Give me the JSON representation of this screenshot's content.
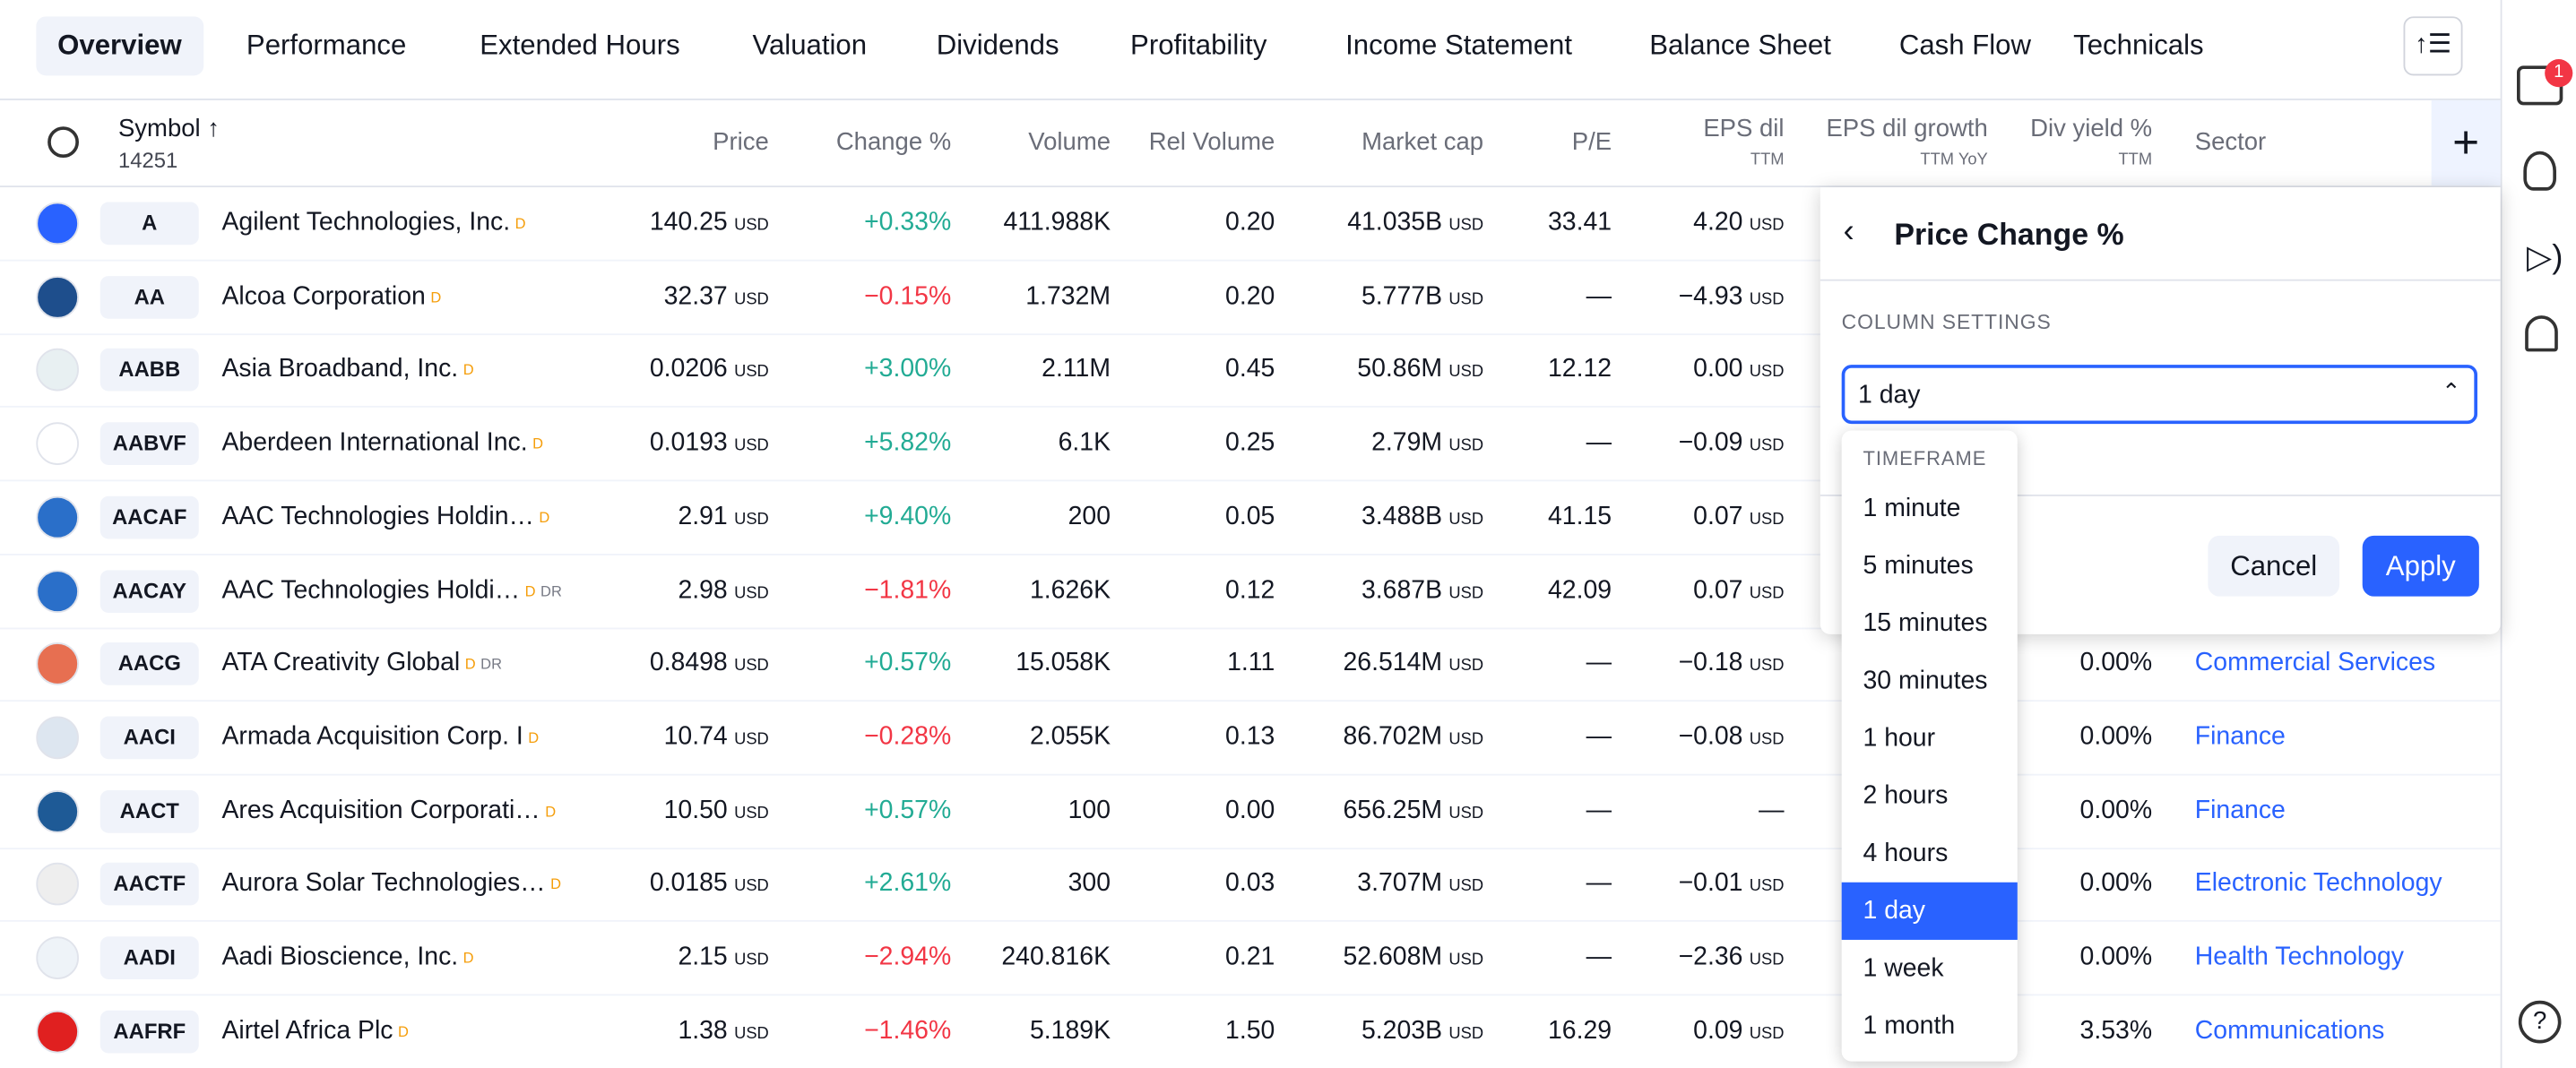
{
  "tabs": [
    "Overview",
    "Performance",
    "Extended Hours",
    "Valuation",
    "Dividends",
    "Profitability",
    "Income Statement",
    "Balance Sheet",
    "Cash Flow",
    "Technicals"
  ],
  "sidebar": {
    "badge": "1"
  },
  "table": {
    "currency": "USD",
    "header": {
      "symbol": "Symbol",
      "count": "14251",
      "price": "Price",
      "change": "Change %",
      "volume": "Volume",
      "rel_volume": "Rel Volume",
      "market_cap": "Market cap",
      "pe": "P/E",
      "eps": "EPS dil",
      "eps_sub": "TTM",
      "eps_growth": "EPS dil growth",
      "eps_growth_sub": "TTM YoY",
      "div_yield": "Div yield %",
      "div_yield_sub": "TTM",
      "sector": "Sector"
    },
    "rows": [
      {
        "symbol": "A",
        "name": "Agilent Technologies, Inc.",
        "badges": [
          "D"
        ],
        "price": "140.25",
        "change": "+0.33%",
        "volume": "411.988K",
        "rel_volume": "0.20",
        "market_cap": "41.035B",
        "pe": "33.41",
        "eps": "4.20"
      },
      {
        "symbol": "AA",
        "name": "Alcoa Corporation",
        "badges": [
          "D"
        ],
        "price": "32.37",
        "change": "−0.15%",
        "volume": "1.732M",
        "rel_volume": "0.20",
        "market_cap": "5.777B",
        "pe": "—",
        "eps": "−4.93"
      },
      {
        "symbol": "AABB",
        "name": "Asia Broadband, Inc.",
        "badges": [
          "D"
        ],
        "price": "0.0206",
        "change": "+3.00%",
        "volume": "2.11M",
        "rel_volume": "0.45",
        "market_cap": "50.86M",
        "pe": "12.12",
        "eps": "0.00"
      },
      {
        "symbol": "AABVF",
        "name": "Aberdeen International Inc.",
        "badges": [
          "D"
        ],
        "price": "0.0193",
        "change": "+5.82%",
        "volume": "6.1K",
        "rel_volume": "0.25",
        "market_cap": "2.79M",
        "pe": "—",
        "eps": "−0.09"
      },
      {
        "symbol": "AACAF",
        "name": "AAC Technologies Holdin…",
        "badges": [
          "D"
        ],
        "price": "2.91",
        "change": "+9.40%",
        "volume": "200",
        "rel_volume": "0.05",
        "market_cap": "3.488B",
        "pe": "41.15",
        "eps": "0.07"
      },
      {
        "symbol": "AACAY",
        "name": "AAC Technologies Holdi…",
        "badges": [
          "D",
          "DR"
        ],
        "price": "2.98",
        "change": "−1.81%",
        "volume": "1.626K",
        "rel_volume": "0.12",
        "market_cap": "3.687B",
        "pe": "42.09",
        "eps": "0.07"
      },
      {
        "symbol": "AACG",
        "name": "ATA Creativity Global",
        "badges": [
          "D",
          "DR"
        ],
        "price": "0.8498",
        "change": "+0.57%",
        "volume": "15.058K",
        "rel_volume": "1.11",
        "market_cap": "26.514M",
        "pe": "—",
        "eps": "−0.18",
        "div_yield": "0.00%",
        "sector": "Commercial Services"
      },
      {
        "symbol": "AACI",
        "name": "Armada Acquisition Corp. I",
        "badges": [
          "D"
        ],
        "price": "10.74",
        "change": "−0.28%",
        "volume": "2.055K",
        "rel_volume": "0.13",
        "market_cap": "86.702M",
        "pe": "—",
        "eps": "−0.08",
        "div_yield": "0.00%",
        "sector": "Finance"
      },
      {
        "symbol": "AACT",
        "name": "Ares Acquisition Corporati…",
        "badges": [
          "D"
        ],
        "price": "10.50",
        "change": "+0.57%",
        "volume": "100",
        "rel_volume": "0.00",
        "market_cap": "656.25M",
        "pe": "—",
        "eps": "—",
        "div_yield": "0.00%",
        "sector": "Finance"
      },
      {
        "symbol": "AACTF",
        "name": "Aurora Solar Technologies…",
        "badges": [
          "D"
        ],
        "price": "0.0185",
        "change": "+2.61%",
        "volume": "300",
        "rel_volume": "0.03",
        "market_cap": "3.707M",
        "pe": "—",
        "eps": "−0.01",
        "div_yield": "0.00%",
        "sector": "Electronic Technology"
      },
      {
        "symbol": "AADI",
        "name": "Aadi Bioscience, Inc.",
        "badges": [
          "D"
        ],
        "price": "2.15",
        "change": "−2.94%",
        "volume": "240.816K",
        "rel_volume": "0.21",
        "market_cap": "52.608M",
        "pe": "—",
        "eps": "−2.36",
        "div_yield": "0.00%",
        "sector": "Health Technology"
      },
      {
        "symbol": "AAFRF",
        "name": "Airtel Africa Plc",
        "badges": [
          "D"
        ],
        "price": "1.38",
        "change": "−1.46%",
        "volume": "5.189K",
        "rel_volume": "1.50",
        "market_cap": "5.203B",
        "pe": "16.29",
        "eps": "0.09",
        "div_yield": "3.53%",
        "sector": "Communications"
      }
    ]
  },
  "popup": {
    "title": "Price Change %",
    "section": "COLUMN SETTINGS",
    "selected": "1 day",
    "dropdown_header": "TIMEFRAME",
    "options": [
      "1 minute",
      "5 minutes",
      "15 minutes",
      "30 minutes",
      "1 hour",
      "2 hours",
      "4 hours",
      "1 day",
      "1 week",
      "1 month"
    ],
    "cancel": "Cancel",
    "apply": "Apply"
  }
}
